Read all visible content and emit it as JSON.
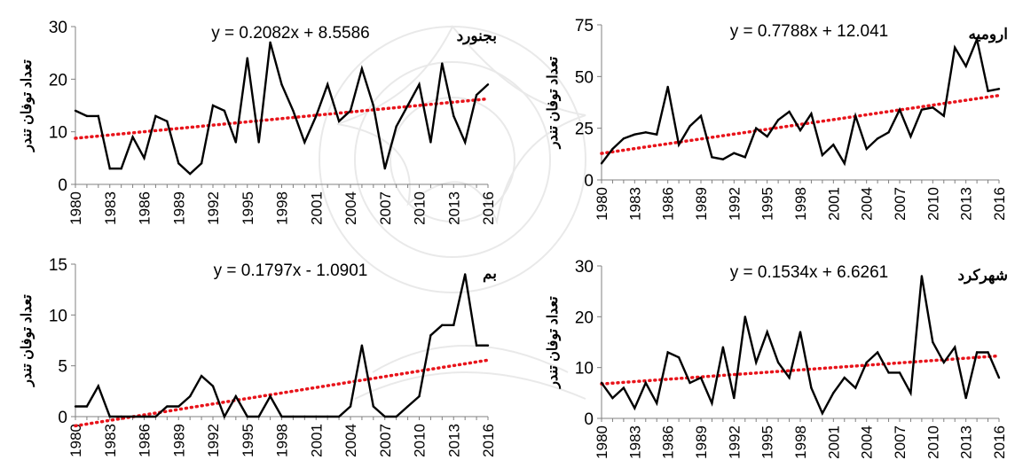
{
  "chart_data": [
    {
      "type": "line",
      "title": "بجنورد",
      "equation": "y = 0.2082x + 8.5586",
      "ylabel": "تعداد توفان تندر",
      "ylim": [
        0,
        30
      ],
      "yticks": [
        0,
        10,
        20,
        30
      ],
      "xticks": [
        "1980",
        "1983",
        "1986",
        "1989",
        "1992",
        "1995",
        "1998",
        "2001",
        "2004",
        "2007",
        "2010",
        "2013",
        "2016"
      ],
      "x": [
        1980,
        1981,
        1982,
        1983,
        1984,
        1985,
        1986,
        1987,
        1988,
        1989,
        1990,
        1991,
        1992,
        1993,
        1994,
        1995,
        1996,
        1997,
        1998,
        1999,
        2000,
        2001,
        2002,
        2003,
        2004,
        2005,
        2006,
        2007,
        2008,
        2009,
        2010,
        2011,
        2012,
        2013,
        2014,
        2015,
        2016
      ],
      "series": [
        {
          "values": [
            14,
            13,
            13,
            3,
            3,
            9,
            5,
            13,
            12,
            4,
            2,
            4,
            15,
            14,
            8,
            24,
            8,
            27,
            19,
            14,
            8,
            13,
            19,
            12,
            14,
            22,
            15,
            3,
            11,
            15,
            19,
            8,
            23,
            13,
            8,
            17,
            19
          ]
        }
      ],
      "trend": {
        "slope": 0.2082,
        "intercept": 8.5586
      },
      "colors": {
        "line": "#000000",
        "trend": "#e8141b"
      }
    },
    {
      "type": "line",
      "title": "ارومیه",
      "equation": "y = 0.7788x + 12.041",
      "ylabel": "تعداد توفان تندر",
      "ylim": [
        0,
        75
      ],
      "yticks": [
        0,
        25,
        50,
        75
      ],
      "xticks": [
        "1980",
        "1983",
        "1986",
        "1989",
        "1992",
        "1995",
        "1998",
        "2001",
        "2004",
        "2007",
        "2010",
        "2013",
        "2016"
      ],
      "x": [
        1980,
        1981,
        1982,
        1983,
        1984,
        1985,
        1986,
        1987,
        1988,
        1989,
        1990,
        1991,
        1992,
        1993,
        1994,
        1995,
        1996,
        1997,
        1998,
        1999,
        2000,
        2001,
        2002,
        2003,
        2004,
        2005,
        2006,
        2007,
        2008,
        2009,
        2010,
        2011,
        2012,
        2013,
        2014,
        2015,
        2016
      ],
      "series": [
        {
          "values": [
            8,
            15,
            20,
            22,
            23,
            22,
            45,
            17,
            26,
            31,
            11,
            10,
            13,
            11,
            25,
            21,
            29,
            33,
            24,
            32,
            12,
            17,
            8,
            31,
            15,
            20,
            23,
            34,
            21,
            34,
            35,
            31,
            64,
            55,
            68,
            43,
            44
          ]
        }
      ],
      "trend": {
        "slope": 0.7788,
        "intercept": 12.041
      },
      "colors": {
        "line": "#000000",
        "trend": "#e8141b"
      }
    },
    {
      "type": "line",
      "title": "بم",
      "equation": "y = 0.1797x - 1.0901",
      "ylabel": "تعداد توفان تندر",
      "ylim": [
        0,
        15
      ],
      "yticks": [
        0,
        5,
        10,
        15
      ],
      "xticks": [
        "1980",
        "1983",
        "1986",
        "1989",
        "1992",
        "1995",
        "1998",
        "2001",
        "2004",
        "2007",
        "2010",
        "2013",
        "2016"
      ],
      "x": [
        1980,
        1981,
        1982,
        1983,
        1984,
        1985,
        1986,
        1987,
        1988,
        1989,
        1990,
        1991,
        1992,
        1993,
        1994,
        1995,
        1996,
        1997,
        1998,
        1999,
        2000,
        2001,
        2002,
        2003,
        2004,
        2005,
        2006,
        2007,
        2008,
        2009,
        2010,
        2011,
        2012,
        2013,
        2014,
        2015,
        2016
      ],
      "series": [
        {
          "values": [
            1,
            1,
            3,
            0,
            0,
            0,
            0,
            0,
            1,
            1,
            2,
            4,
            3,
            0,
            2,
            0,
            0,
            2,
            0,
            0,
            0,
            0,
            0,
            0,
            1,
            7,
            1,
            0,
            0,
            1,
            2,
            8,
            9,
            9,
            14,
            7,
            7
          ]
        }
      ],
      "trend": {
        "slope": 0.1797,
        "intercept": -1.0901
      },
      "colors": {
        "line": "#000000",
        "trend": "#e8141b"
      }
    },
    {
      "type": "line",
      "title": "شهرکرد",
      "equation": "y = 0.1534x + 6.6261",
      "ylabel": "تعداد توفان تندر",
      "ylim": [
        0,
        30
      ],
      "yticks": [
        0,
        10,
        20,
        30
      ],
      "xticks": [
        "1980",
        "1983",
        "1986",
        "1989",
        "1992",
        "1995",
        "1998",
        "2001",
        "2004",
        "2007",
        "2010",
        "2013",
        "2016"
      ],
      "x": [
        1980,
        1981,
        1982,
        1983,
        1984,
        1985,
        1986,
        1987,
        1988,
        1989,
        1990,
        1991,
        1992,
        1993,
        1994,
        1995,
        1996,
        1997,
        1998,
        1999,
        2000,
        2001,
        2002,
        2003,
        2004,
        2005,
        2006,
        2007,
        2008,
        2009,
        2010,
        2011,
        2012,
        2013,
        2014,
        2015,
        2016
      ],
      "series": [
        {
          "values": [
            7,
            4,
            6,
            2,
            7,
            3,
            13,
            12,
            7,
            8,
            3,
            14,
            4,
            20,
            11,
            17,
            11,
            8,
            17,
            6,
            1,
            5,
            8,
            6,
            11,
            13,
            9,
            9,
            5,
            28,
            15,
            11,
            14,
            4,
            13,
            13,
            8
          ]
        }
      ],
      "trend": {
        "slope": 0.1534,
        "intercept": 6.6261
      },
      "colors": {
        "line": "#000000",
        "trend": "#e8141b"
      }
    }
  ]
}
